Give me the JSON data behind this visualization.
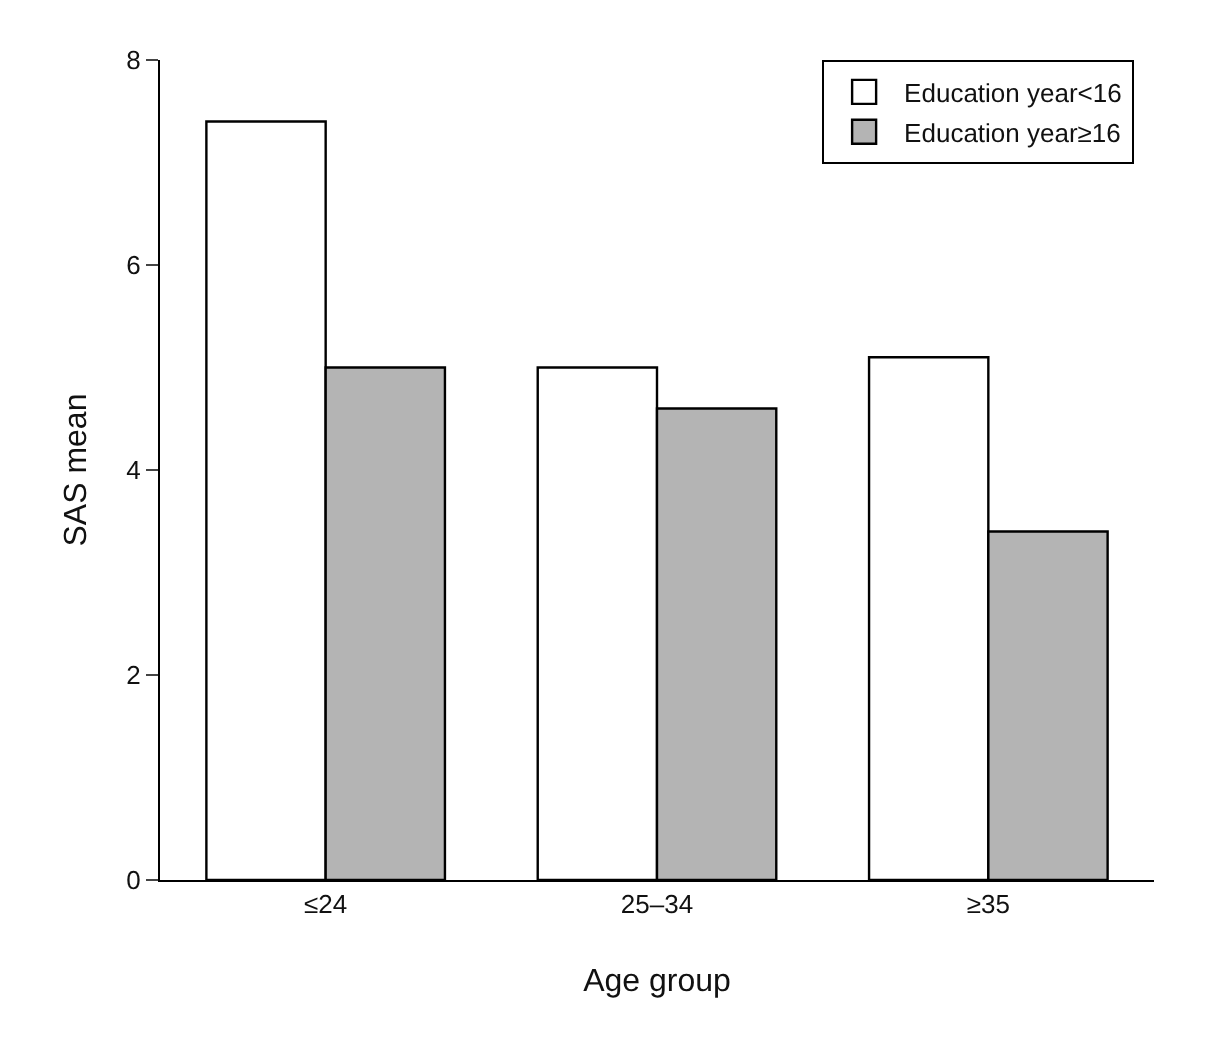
{
  "chart_data": {
    "type": "bar",
    "xlabel": "Age group",
    "ylabel": "SAS mean",
    "categories": [
      "≤24",
      "25–34",
      "≥35"
    ],
    "series": [
      {
        "name": "Education year<16",
        "color": "#ffffff",
        "values": [
          7.4,
          5.0,
          5.1
        ]
      },
      {
        "name": "Education year≥16",
        "color": "#b4b4b4",
        "values": [
          5.0,
          4.6,
          3.4
        ]
      }
    ],
    "ylim": [
      0,
      8
    ],
    "yticks": [
      0,
      2,
      4,
      6,
      8
    ],
    "legend": "top right"
  }
}
